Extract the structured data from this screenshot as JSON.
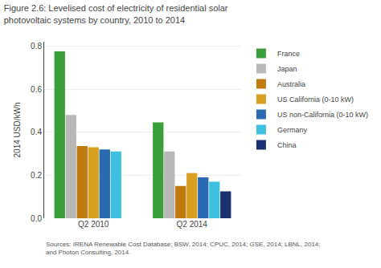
{
  "chart_data": {
    "type": "bar",
    "title": "Figure 2.6: Levelised cost of electricity of residential solar photovoltaic systems by country, 2010 to 2014",
    "ylabel": "2014 USD/kWh",
    "annotations": [
      "Sources: IRENA Renewable Cost Database; BSW, 2014; CPUC, 2014; GSE, 2014; LBNL, 2014; and Photon Consulting, 2014."
    ],
    "categories": [
      "Q2 2010",
      "Q2 2014"
    ],
    "series": [
      {
        "name": "France",
        "color": "#3a9e3a",
        "values": [
          0.775,
          0.445
        ]
      },
      {
        "name": "Japan",
        "color": "#b8b8b8",
        "values": [
          0.48,
          0.31
        ]
      },
      {
        "name": "Australia",
        "color": "#bf7a10",
        "values": [
          0.335,
          0.15
        ]
      },
      {
        "name": "US California (0-10 kW)",
        "color": "#d8a020",
        "values": [
          0.33,
          0.21
        ]
      },
      {
        "name": "US non-California (0-10 kW)",
        "color": "#2a6ab0",
        "values": [
          0.32,
          0.19
        ]
      },
      {
        "name": "Germany",
        "color": "#40c0e0",
        "values": [
          0.31,
          0.17
        ]
      },
      {
        "name": "China",
        "color": "#1a3070",
        "values": [
          null,
          0.125
        ]
      }
    ],
    "ylim": [
      0.0,
      0.82
    ],
    "yticks": [
      {
        "value": 0.0,
        "label": "0.0"
      },
      0.2,
      0.4,
      0.6,
      0.8
    ],
    "grid": true,
    "legend": "right"
  }
}
